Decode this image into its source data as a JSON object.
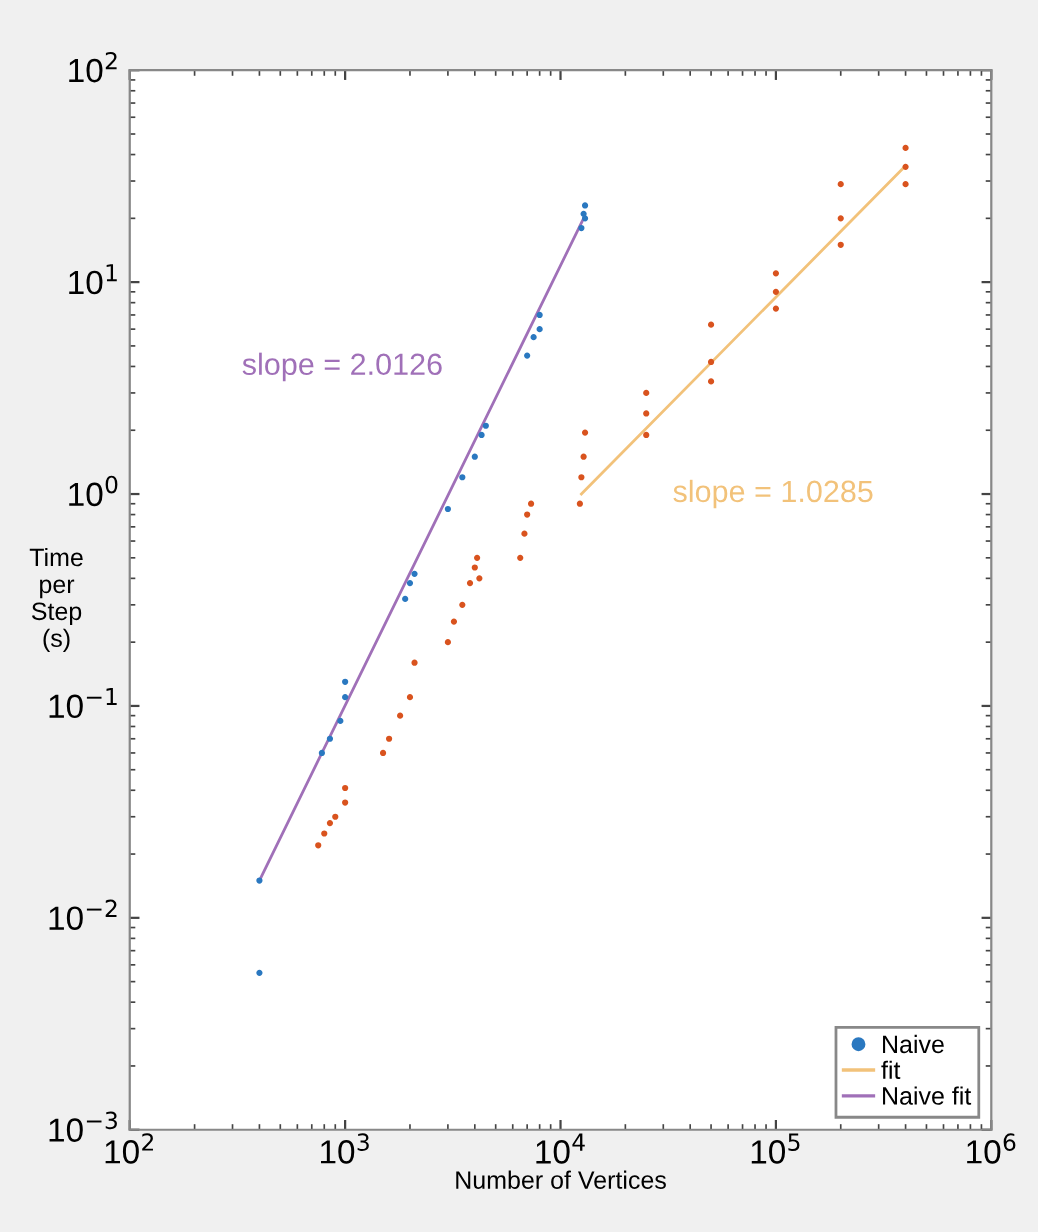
{
  "chart_data": {
    "type": "scatter",
    "xlabel": "Number of Vertices",
    "ylabel": "Time\nper\nStep\n(s)",
    "log": "xy",
    "xlim": [
      100,
      1000000
    ],
    "ylim": [
      0.001,
      100
    ],
    "xticks": [
      {
        "value": 100,
        "label": "10$^{2}$"
      },
      {
        "value": 1000,
        "label": "10$^{3}$"
      },
      {
        "value": 10000,
        "label": "10$^{4}$"
      },
      {
        "value": 100000,
        "label": "10$^{5}$"
      },
      {
        "value": 1000000,
        "label": "10$^{6}$"
      }
    ],
    "yticks": [
      {
        "value": 0.001,
        "label": "10$^{−3}$"
      },
      {
        "value": 0.01,
        "label": "10$^{−2}$"
      },
      {
        "value": 0.1,
        "label": "10$^{−1}$"
      },
      {
        "value": 1,
        "label": "10$^{0}$"
      },
      {
        "value": 10,
        "label": "10$^{1}$"
      },
      {
        "value": 100,
        "label": "10$^{2}$"
      }
    ],
    "marker": "circle",
    "legend": "bottom right",
    "grid": false,
    "series": [
      {
        "name": "Naive",
        "color": "#2a78c0",
        "x": [
          400,
          400,
          780,
          850,
          950,
          1000,
          1000,
          1900,
          2000,
          2100,
          3000,
          3500,
          4000,
          4300,
          4500,
          7000,
          7500,
          8000,
          8000,
          12500,
          12800,
          13000,
          13000
        ],
        "values": [
          0.015,
          0.0055,
          0.06,
          0.07,
          0.085,
          0.11,
          0.13,
          0.32,
          0.38,
          0.42,
          0.85,
          1.2,
          1.5,
          1.9,
          2.1,
          4.5,
          5.5,
          6,
          7,
          18,
          21,
          20,
          23
        ]
      },
      {
        "color": "#d9531e",
        "x": [
          750,
          800,
          850,
          900,
          1000,
          1000,
          1500,
          1600,
          1800,
          2000,
          2100,
          3000,
          3200,
          3500,
          3800,
          4000,
          4100,
          4200,
          6500,
          6800,
          7000,
          7300,
          12300,
          12500,
          12800,
          13000,
          25000,
          25000,
          25000,
          50000,
          50000,
          50000,
          100000,
          100000,
          100000,
          200000,
          200000,
          200000,
          400000,
          400000,
          400000
        ],
        "values": [
          0.022,
          0.025,
          0.028,
          0.03,
          0.035,
          0.041,
          0.06,
          0.07,
          0.09,
          0.11,
          0.16,
          0.2,
          0.25,
          0.3,
          0.38,
          0.45,
          0.5,
          0.4,
          0.5,
          0.65,
          0.8,
          0.9,
          0.9,
          1.2,
          1.5,
          1.95,
          1.9,
          2.4,
          3.0,
          3.4,
          4.2,
          6.3,
          7.5,
          9,
          11,
          15,
          20,
          29,
          29,
          35,
          43
        ]
      },
      {
        "name": "fit",
        "type": "line",
        "marker": "none",
        "color": "#f2c27a",
        "x": [
          12500,
          400000
        ],
        "values": [
          1.0,
          35.4
        ]
      },
      {
        "name": "Naive fit",
        "type": "line",
        "marker": "none",
        "color": "#a070b8",
        "x": [
          400,
          12800
        ],
        "values": [
          0.015,
          20
        ]
      }
    ],
    "annotations": [
      "slope = 2.0126",
      "slope = 1.0285"
    ]
  }
}
